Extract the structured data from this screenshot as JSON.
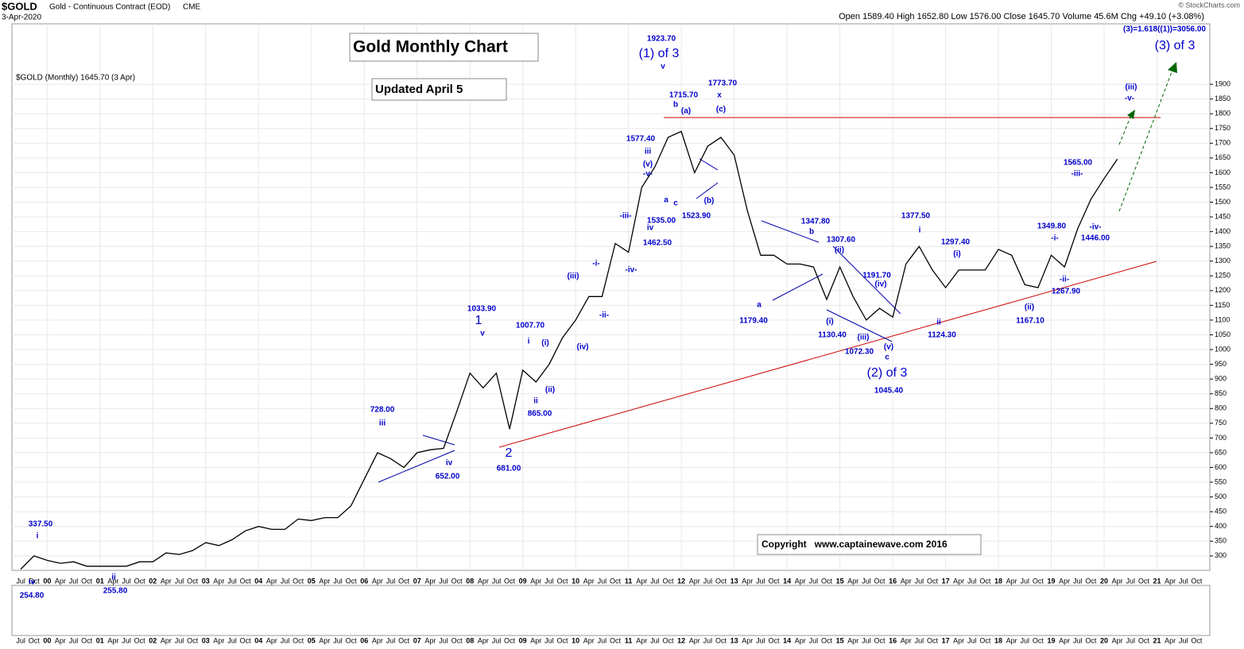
{
  "chart_data": {
    "type": "line",
    "symbol_title": "$GOLD",
    "subtitle": "Gold - Continuous Contract (EOD)",
    "exchange": "CME",
    "date": "3-Apr-2020",
    "quote": "Open 1589.40 High 1652.80 Low 1576.00 Close 1645.70 Volume 45.6M Chg +49.10 (+3.08%)",
    "source": "© StockCharts.com",
    "legend_label": "$GOLD (Monthly) 1645.70 (3 Apr)",
    "title": "Gold Monthly Chart",
    "updated": "Updated April 5",
    "copyright": "Copyright   www.captainewave.com 2016",
    "x": [
      "1999-07",
      "1999-10",
      "2000-01",
      "2000-04",
      "2000-07",
      "2000-10",
      "2001-01",
      "2001-04",
      "2001-07",
      "2001-10",
      "2002-01",
      "2002-04",
      "2002-07",
      "2002-10",
      "2003-01",
      "2003-04",
      "2003-07",
      "2003-10",
      "2004-01",
      "2004-04",
      "2004-07",
      "2004-10",
      "2005-01",
      "2005-04",
      "2005-07",
      "2005-10",
      "2006-01",
      "2006-04",
      "2006-07",
      "2006-10",
      "2007-01",
      "2007-04",
      "2007-07",
      "2007-10",
      "2008-01",
      "2008-04",
      "2008-07",
      "2008-10",
      "2009-01",
      "2009-04",
      "2009-07",
      "2009-10",
      "2010-01",
      "2010-04",
      "2010-07",
      "2010-10",
      "2011-01",
      "2011-04",
      "2011-07",
      "2011-10",
      "2012-01",
      "2012-04",
      "2012-07",
      "2012-10",
      "2013-01",
      "2013-04",
      "2013-07",
      "2013-10",
      "2014-01",
      "2014-04",
      "2014-07",
      "2014-10",
      "2015-01",
      "2015-04",
      "2015-07",
      "2015-10",
      "2016-01",
      "2016-04",
      "2016-07",
      "2016-10",
      "2017-01",
      "2017-04",
      "2017-07",
      "2017-10",
      "2018-01",
      "2018-04",
      "2018-07",
      "2018-10",
      "2019-01",
      "2019-04",
      "2019-07",
      "2019-10",
      "2020-01",
      "2020-04"
    ],
    "series": [
      {
        "name": "$GOLD",
        "color": "#000000",
        "values": [
          255,
          300,
          285,
          275,
          280,
          265,
          265,
          265,
          265,
          280,
          280,
          310,
          305,
          318,
          345,
          335,
          355,
          385,
          400,
          390,
          390,
          425,
          420,
          430,
          430,
          470,
          560,
          650,
          630,
          600,
          650,
          660,
          665,
          790,
          920,
          870,
          920,
          730,
          930,
          890,
          950,
          1040,
          1100,
          1180,
          1180,
          1360,
          1330,
          1550,
          1620,
          1720,
          1740,
          1600,
          1690,
          1720,
          1660,
          1470,
          1320,
          1320,
          1290,
          1290,
          1280,
          1170,
          1280,
          1180,
          1100,
          1140,
          1110,
          1290,
          1350,
          1270,
          1210,
          1270,
          1270,
          1270,
          1340,
          1320,
          1220,
          1210,
          1320,
          1280,
          1410,
          1510,
          1580,
          1646
        ]
      }
    ],
    "ylim": [
      251,
      2105
    ],
    "yticks": [
      300,
      350,
      400,
      450,
      500,
      550,
      600,
      650,
      700,
      750,
      800,
      850,
      900,
      950,
      1000,
      1050,
      1100,
      1150,
      1200,
      1250,
      1300,
      1350,
      1400,
      1450,
      1500,
      1550,
      1600,
      1650,
      1700,
      1750,
      1800,
      1850,
      1900
    ],
    "xlim": [
      "1999-05",
      "2022-01"
    ],
    "xticks": [
      {
        "value": "2000-01",
        "label": "00"
      },
      {
        "value": "2001-01",
        "label": "01"
      },
      {
        "value": "2002-01",
        "label": "02"
      },
      {
        "value": "2003-01",
        "label": "03"
      },
      {
        "value": "2004-01",
        "label": "04"
      },
      {
        "value": "2005-01",
        "label": "05"
      },
      {
        "value": "2006-01",
        "label": "06"
      },
      {
        "value": "2007-01",
        "label": "07"
      },
      {
        "value": "2008-01",
        "label": "08"
      },
      {
        "value": "2009-01",
        "label": "09"
      },
      {
        "value": "2010-01",
        "label": "10"
      },
      {
        "value": "2011-01",
        "label": "11"
      },
      {
        "value": "2012-01",
        "label": "12"
      },
      {
        "value": "2013-01",
        "label": "13"
      },
      {
        "value": "2014-01",
        "label": "14"
      },
      {
        "value": "2015-01",
        "label": "15"
      },
      {
        "value": "2016-01",
        "label": "16"
      },
      {
        "value": "2017-01",
        "label": "17"
      },
      {
        "value": "2018-01",
        "label": "18"
      },
      {
        "value": "2019-01",
        "label": "19"
      },
      {
        "value": "2020-01",
        "label": "20"
      },
      {
        "value": "2021-01",
        "label": "21"
      }
    ],
    "month_labels": [
      "Apr",
      "Jul",
      "Oct"
    ],
    "grid": true,
    "annotations": [
      "337.50",
      "i",
      "iv",
      "254.80",
      "ii",
      "255.80",
      "728.00",
      "iii",
      "iv",
      "652.00",
      "1033.90",
      "1",
      "v",
      "2",
      "681.00",
      "1007.70",
      "i",
      "ii",
      "865.00",
      "(i)",
      "(ii)",
      "(iii)",
      "(iv)",
      "-i-",
      "-ii-",
      "-iii-",
      "-iv-",
      "1577.40",
      "iii",
      "(v)",
      "-v-",
      "1535.00",
      "iv",
      "1462.50",
      "1923.70",
      "(1) of 3",
      "v",
      "1715.70",
      "b",
      "(a)",
      "a",
      "c",
      "1523.90",
      "(b)",
      "1773.70",
      "x",
      "(c)",
      "a",
      "1179.40",
      "1347.80",
      "b",
      "1307.60",
      "(ii)",
      "1191.70",
      "(iv)",
      "(i)",
      "1130.40",
      "(iii)",
      "1072.30",
      "(v)",
      "c",
      "(2) of 3",
      "1045.40",
      "1377.50",
      "i",
      "1297.40",
      "(i)",
      "ii",
      "1124.30",
      "(ii)",
      "1167.10",
      "1349.80",
      "-i-",
      "-ii-",
      "1267.90",
      "1565.00",
      "-iii-",
      "-iv-",
      "1446.00",
      "(iii)",
      "-v-",
      "(3) of 3",
      "(3)=1.618((1))=3056.00"
    ]
  }
}
